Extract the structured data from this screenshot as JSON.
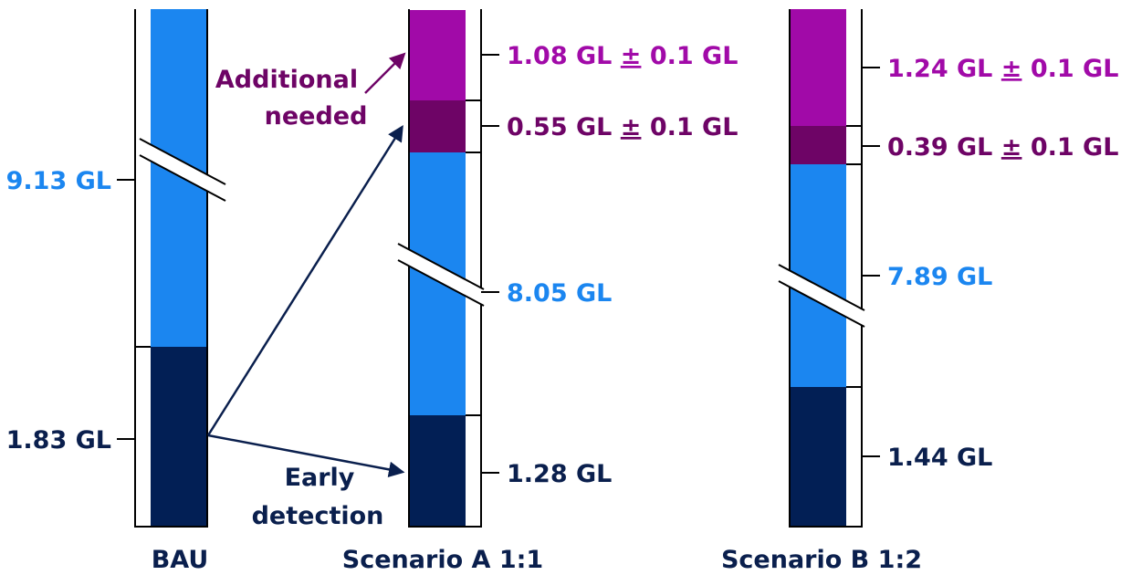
{
  "colors": {
    "navy": "#021f55",
    "blue": "#1b86f0",
    "magenta": "#a10aa8",
    "plum": "#6e0466",
    "frame": "#000000",
    "label_dark": "#0a1f4d",
    "label_blue": "#1b86f0",
    "label_magenta": "#a10aa8",
    "label_plum": "#6e0466"
  },
  "chart_data": {
    "type": "bar",
    "stacked": true,
    "axis_break": true,
    "units": "GL",
    "categories": [
      "BAU",
      "Scenario A 1:1",
      "Scenario B 1:2"
    ],
    "bars": [
      {
        "category": "BAU",
        "segments": [
          {
            "name": "early",
            "value": 1.83,
            "label": "1.83 GL",
            "color": "navy",
            "label_color": "label_dark",
            "label_side": "left"
          },
          {
            "name": "base",
            "value": 9.13,
            "label": "9.13 GL",
            "color": "blue",
            "label_color": "label_blue",
            "label_side": "left"
          }
        ]
      },
      {
        "category": "Scenario A 1:1",
        "segments": [
          {
            "name": "early",
            "value": 1.28,
            "label": "1.28 GL",
            "color": "navy",
            "label_color": "label_dark",
            "label_side": "right"
          },
          {
            "name": "base",
            "value": 8.05,
            "label": "8.05 GL",
            "color": "blue",
            "label_color": "label_blue",
            "label_side": "right"
          },
          {
            "name": "additional-low",
            "value": 0.55,
            "label_value": "0.55 GL",
            "label_pm": "±",
            "label_unc": " 0.1 GL",
            "color": "plum",
            "label_color": "label_plum",
            "label_side": "right"
          },
          {
            "name": "additional-high",
            "value": 1.08,
            "label_value": "1.08 GL",
            "label_pm": "±",
            "label_unc": " 0.1 GL",
            "color": "magenta",
            "label_color": "label_magenta",
            "label_side": "right"
          }
        ]
      },
      {
        "category": "Scenario B 1:2",
        "segments": [
          {
            "name": "early",
            "value": 1.44,
            "label": "1.44 GL",
            "color": "navy",
            "label_color": "label_dark",
            "label_side": "right"
          },
          {
            "name": "base",
            "value": 7.89,
            "label": "7.89 GL",
            "color": "blue",
            "label_color": "label_blue",
            "label_side": "right"
          },
          {
            "name": "additional-low",
            "value": 0.39,
            "label_value": "0.39 GL",
            "label_pm": "±",
            "label_unc": " 0.1 GL",
            "color": "plum",
            "label_color": "label_plum",
            "label_side": "right"
          },
          {
            "name": "additional-high",
            "value": 1.24,
            "label_value": "1.24 GL",
            "label_pm": "±",
            "label_unc": " 0.1 GL",
            "color": "magenta",
            "label_color": "label_magenta",
            "label_side": "right"
          }
        ]
      }
    ],
    "annotations": [
      {
        "name": "additional-needed",
        "lines": [
          "Additional",
          "needed"
        ],
        "color": "label_plum"
      },
      {
        "name": "early-detection",
        "lines": [
          "Early",
          "detection"
        ],
        "color": "label_dark"
      }
    ]
  }
}
